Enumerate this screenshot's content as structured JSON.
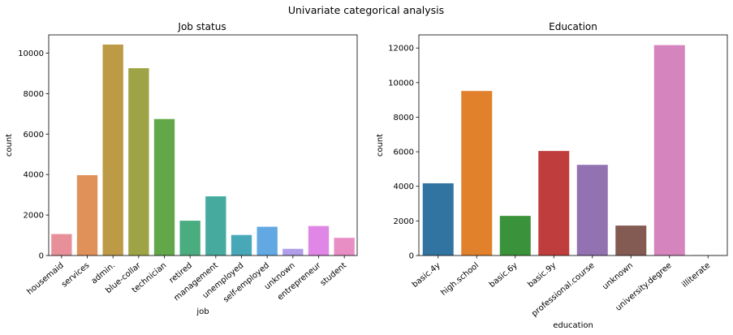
{
  "figure": {
    "suptitle": "Univariate categorical analysis"
  },
  "chart_data": [
    {
      "type": "bar",
      "title": "Job status",
      "xlabel": "job",
      "ylabel": "count",
      "ylim": [
        0,
        10900
      ],
      "yticks": [
        0,
        2000,
        4000,
        6000,
        8000,
        10000
      ],
      "grid": false,
      "categories": [
        "housemaid",
        "services",
        "admin.",
        "blue-collar",
        "technician",
        "retired",
        "management",
        "unemployed",
        "self-employed",
        "unknown",
        "entrepreneur",
        "student"
      ],
      "values": [
        1060,
        3969,
        10422,
        9254,
        6743,
        1720,
        2924,
        1014,
        1421,
        330,
        1456,
        875
      ],
      "colors": [
        "#e8909a",
        "#e0915a",
        "#bd9a46",
        "#9ea345",
        "#62a84a",
        "#4aad80",
        "#46ab9e",
        "#48a8b8",
        "#62a8e2",
        "#b09ee8",
        "#e086e6",
        "#e88ec4"
      ]
    },
    {
      "type": "bar",
      "title": "Education",
      "xlabel": "education",
      "ylabel": "count",
      "ylim": [
        0,
        12760
      ],
      "yticks": [
        0,
        2000,
        4000,
        6000,
        8000,
        10000,
        12000
      ],
      "grid": false,
      "categories": [
        "basic.4y",
        "high.school",
        "basic.6y",
        "basic.9y",
        "professional.course",
        "unknown",
        "university.degree",
        "illiterate"
      ],
      "values": [
        4176,
        9515,
        2292,
        6045,
        5243,
        1731,
        12168,
        18
      ],
      "colors": [
        "#3274a1",
        "#e1812c",
        "#3a923a",
        "#c03d3e",
        "#9372b2",
        "#845b53",
        "#d684bd",
        "#7f7f7f"
      ]
    }
  ]
}
